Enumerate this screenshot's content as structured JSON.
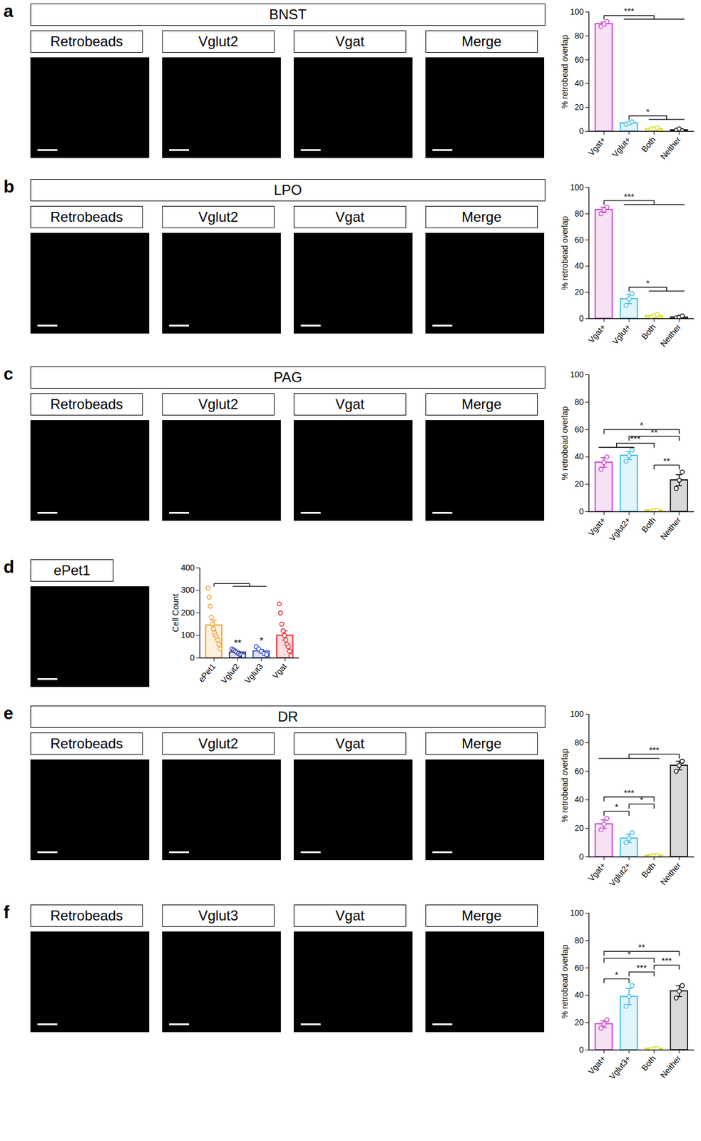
{
  "panels": [
    {
      "letter": "a",
      "title": "BNST",
      "images": [
        "Retrobeads",
        "Vglut2",
        "Vgat",
        "Merge"
      ]
    },
    {
      "letter": "b",
      "title": "LPO",
      "images": [
        "Retrobeads",
        "Vglut2",
        "Vgat",
        "Merge"
      ]
    },
    {
      "letter": "c",
      "title": "PAG",
      "images": [
        "Retrobeads",
        "Vglut2",
        "Vgat",
        "Merge"
      ]
    },
    {
      "letter": "d",
      "images": [
        "ePet1"
      ]
    },
    {
      "letter": "e",
      "title": "DR",
      "images": [
        "Retrobeads",
        "Vglut2",
        "Vgat",
        "Merge"
      ]
    },
    {
      "letter": "f",
      "images": [
        "Retrobeads",
        "Vglut3",
        "Vgat",
        "Merge"
      ]
    }
  ],
  "chart_data": [
    {
      "panel": "a",
      "type": "bar",
      "ylabel": "% retrobead overlap",
      "categories": [
        "Vgat+",
        "Vglut+",
        "Both",
        "Neither"
      ],
      "values": [
        90,
        7,
        2,
        1
      ],
      "errors": [
        1.5,
        0.8,
        0.4,
        0.4
      ],
      "points": [
        [
          88,
          90,
          92
        ],
        [
          6,
          7,
          8
        ],
        [
          2,
          2,
          3
        ],
        [
          1,
          2,
          0.5
        ]
      ],
      "colors": [
        "#cc33cc",
        "#33b8e6",
        "#d9d900",
        "#000000"
      ],
      "ylim": [
        0,
        100
      ],
      "yticks": [
        0,
        20,
        40,
        60,
        80,
        100
      ],
      "brackets": [
        {
          "label": "*",
          "from": [
            "Vglut+"
          ],
          "to": [
            "Both",
            "Neither"
          ]
        },
        {
          "label": "***",
          "from": [
            "Vgat+"
          ],
          "to": [
            "Vglut+",
            "Both",
            "Neither"
          ]
        }
      ]
    },
    {
      "panel": "b",
      "type": "bar",
      "ylabel": "% retrobead overlap",
      "categories": [
        "Vgat+",
        "Vglut+",
        "Both",
        "Neither"
      ],
      "values": [
        83,
        15,
        2,
        1
      ],
      "errors": [
        2,
        3.5,
        0.5,
        0.5
      ],
      "points": [
        [
          80,
          83,
          85
        ],
        [
          10,
          15,
          19
        ],
        [
          1,
          2,
          3
        ],
        [
          0.5,
          1,
          2
        ]
      ],
      "colors": [
        "#cc33cc",
        "#33b8e6",
        "#d9d900",
        "#000000"
      ],
      "ylim": [
        0,
        100
      ],
      "yticks": [
        0,
        20,
        40,
        60,
        80,
        100
      ],
      "brackets": [
        {
          "label": "*",
          "from": [
            "Vglut+"
          ],
          "to": [
            "Both",
            "Neither"
          ]
        },
        {
          "label": "***",
          "from": [
            "Vgat+"
          ],
          "to": [
            "Vglut+",
            "Both",
            "Neither"
          ]
        }
      ]
    },
    {
      "panel": "c",
      "type": "bar",
      "ylabel": "% retrobead overlap",
      "categories": [
        "Vgat+",
        "Vglut2+",
        "Both",
        "Neither"
      ],
      "values": [
        36,
        41,
        1,
        23
      ],
      "errors": [
        3.5,
        3,
        0.3,
        4
      ],
      "points": [
        [
          31,
          36,
          40
        ],
        [
          37,
          41,
          45
        ],
        [
          0.5,
          1,
          1
        ],
        [
          17,
          23,
          29
        ]
      ],
      "colors": [
        "#cc33cc",
        "#33b8e6",
        "#d9d900",
        "#000000"
      ],
      "ylim": [
        0,
        100
      ],
      "yticks": [
        0,
        20,
        40,
        60,
        80,
        100
      ],
      "brackets": [
        {
          "label": "**",
          "from": [
            "Both"
          ],
          "to": [
            "Neither"
          ]
        },
        {
          "label": "***",
          "from": [
            "Vgat+",
            "Vglut2+"
          ],
          "to": [
            "Both"
          ]
        },
        {
          "label": "**",
          "from": [
            "Vglut2+"
          ],
          "to": [
            "Neither"
          ]
        },
        {
          "label": "*",
          "from": [
            "Vgat+"
          ],
          "to": [
            "Neither"
          ]
        }
      ]
    },
    {
      "panel": "d",
      "type": "bar",
      "ylabel": "Cell Count",
      "categories": [
        "ePet1",
        "Vglut2",
        "Vglut3",
        "Vgat"
      ],
      "values": [
        145,
        25,
        30,
        100
      ],
      "errors": [
        22,
        4,
        7,
        20
      ],
      "points": [
        [
          310,
          270,
          230,
          180,
          150,
          130,
          110,
          100,
          90,
          80,
          60,
          40
        ],
        [
          40,
          35,
          30,
          25,
          20,
          15,
          15,
          10
        ],
        [
          50,
          40,
          30,
          20,
          15
        ],
        [
          240,
          200,
          150,
          120,
          100,
          80,
          60,
          50,
          30,
          10
        ]
      ],
      "colors": [
        "#f29a1f",
        "#1a2a99",
        "#2a45c8",
        "#e31e24"
      ],
      "ylim": [
        0,
        400
      ],
      "yticks": [
        0,
        100,
        200,
        300,
        400
      ],
      "brackets": [
        {
          "from": [
            "ePet1"
          ],
          "to": [
            "Vglut2",
            "Vglut3"
          ]
        }
      ],
      "significance": [
        null,
        "**",
        "*",
        null
      ]
    },
    {
      "panel": "e",
      "type": "bar",
      "ylabel": "% retrobead overlap",
      "categories": [
        "Vgat+",
        "Vglut2+",
        "Both",
        "Neither"
      ],
      "values": [
        23,
        13,
        1,
        64
      ],
      "errors": [
        3,
        3,
        0.3,
        3
      ],
      "points": [
        [
          19,
          23,
          27
        ],
        [
          10,
          13,
          17
        ],
        [
          0.5,
          1,
          1
        ],
        [
          60,
          64,
          67
        ]
      ],
      "colors": [
        "#cc33cc",
        "#33b8e6",
        "#d9d900",
        "#000000"
      ],
      "ylim": [
        0,
        100
      ],
      "yticks": [
        0,
        20,
        40,
        60,
        80,
        100
      ],
      "brackets": [
        {
          "label": "*",
          "from": [
            "Vgat+"
          ],
          "to": [
            "Vglut2+"
          ]
        },
        {
          "label": "*",
          "from": [
            "Vglut2+"
          ],
          "to": [
            "Both"
          ]
        },
        {
          "label": "***",
          "from": [
            "Vgat+"
          ],
          "to": [
            "Both"
          ]
        },
        {
          "label": "***",
          "from": [
            "Vgat+",
            "Vglut2+",
            "Both"
          ],
          "to": [
            "Neither"
          ]
        }
      ]
    },
    {
      "panel": "f",
      "type": "bar",
      "ylabel": "% retrobead overlap",
      "categories": [
        "Vgat+",
        "Vglut3+",
        "Both",
        "Neither"
      ],
      "values": [
        19,
        39,
        1,
        43
      ],
      "errors": [
        2.5,
        6,
        0.3,
        4
      ],
      "points": [
        [
          16,
          19,
          22
        ],
        [
          32,
          39,
          47
        ],
        [
          0.5,
          1,
          1
        ],
        [
          38,
          43,
          47
        ]
      ],
      "colors": [
        "#cc33cc",
        "#33b8e6",
        "#d9d900",
        "#000000"
      ],
      "ylim": [
        0,
        100
      ],
      "yticks": [
        0,
        20,
        40,
        60,
        80,
        100
      ],
      "brackets": [
        {
          "label": "*",
          "from": [
            "Vgat+"
          ],
          "to": [
            "Vglut3+"
          ]
        },
        {
          "label": "***",
          "from": [
            "Vglut3+"
          ],
          "to": [
            "Both"
          ]
        },
        {
          "label": "***",
          "from": [
            "Both"
          ],
          "to": [
            "Neither"
          ]
        },
        {
          "label": "*",
          "from": [
            "Vgat+"
          ],
          "to": [
            "Both"
          ]
        },
        {
          "label": "**",
          "from": [
            "Vgat+"
          ],
          "to": [
            "Neither"
          ]
        }
      ]
    }
  ]
}
